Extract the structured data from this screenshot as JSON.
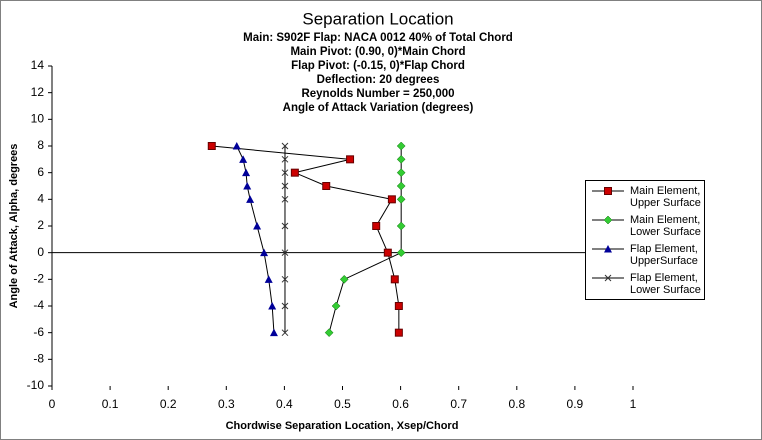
{
  "chart_data": {
    "type": "line-scatter",
    "title": "Separation Location",
    "subtitle": [
      "Main: S902F  Flap: NACA 0012  40% of Total Chord",
      "Main Pivot: (0.90, 0)*Main Chord",
      "Flap Pivot: (-0.15, 0)*Flap Chord",
      "Deflection: 20 degrees",
      "Reynolds Number = 250,000",
      "Angle of Attack Variation (degrees)"
    ],
    "xlabel": "Chordwise Separation Location, Xsep/Chord",
    "ylabel": "Angle of Attack, Alpha, degrees",
    "xlim": [
      0,
      1
    ],
    "xticks": [
      0,
      0.1,
      0.2,
      0.3,
      0.4,
      0.5,
      0.6,
      0.7,
      0.8,
      0.9,
      1
    ],
    "ylim": [
      -10,
      14
    ],
    "yticks": [
      -10,
      -8,
      -6,
      -4,
      -2,
      0,
      2,
      4,
      6,
      8,
      10,
      12,
      14
    ],
    "grid": false,
    "series": [
      {
        "name": "Main Element, Upper Surface",
        "color": "#cc0000",
        "marker": "square",
        "x": [
          0.275,
          0.513,
          0.418,
          0.472,
          0.585,
          0.558,
          0.578,
          0.59,
          0.597,
          0.597
        ],
        "values": [
          8,
          7,
          6,
          5,
          4,
          2,
          0,
          -2,
          -4,
          -6
        ]
      },
      {
        "name": "Main Element, Lower Surface",
        "color": "#33cc33",
        "marker": "diamond",
        "x": [
          0.601,
          0.601,
          0.601,
          0.601,
          0.601,
          0.601,
          0.601,
          0.503,
          0.489,
          0.477
        ],
        "values": [
          8,
          7,
          6,
          5,
          4,
          2,
          0,
          -2,
          -4,
          -6
        ]
      },
      {
        "name": "Flap Element, UpperSurface",
        "color": "#000099",
        "marker": "triangle",
        "x": [
          0.318,
          0.329,
          0.334,
          0.336,
          0.341,
          0.353,
          0.365,
          0.373,
          0.379,
          0.382
        ],
        "values": [
          8,
          7,
          6,
          5,
          4,
          2,
          0,
          -2,
          -4,
          -6
        ]
      },
      {
        "name": "Flap Element, Lower Surface",
        "color": "#333333",
        "marker": "cross",
        "x": [
          0.401,
          0.401,
          0.401,
          0.401,
          0.401,
          0.401,
          0.401,
          0.401,
          0.401,
          0.401
        ],
        "values": [
          8,
          7,
          6,
          5,
          4,
          2,
          0,
          -2,
          -4,
          -6
        ]
      }
    ]
  }
}
